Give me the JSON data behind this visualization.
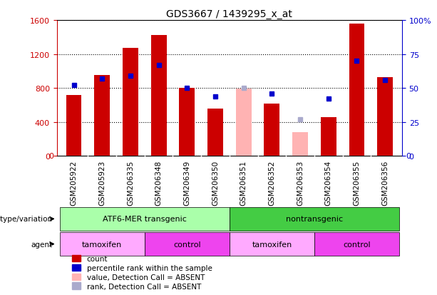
{
  "title": "GDS3667 / 1439295_x_at",
  "samples": [
    "GSM205922",
    "GSM205923",
    "GSM206335",
    "GSM206348",
    "GSM206349",
    "GSM206350",
    "GSM206351",
    "GSM206352",
    "GSM206353",
    "GSM206354",
    "GSM206355",
    "GSM206356"
  ],
  "count_values": [
    720,
    950,
    1270,
    1420,
    800,
    560,
    null,
    620,
    null,
    460,
    1560,
    930
  ],
  "count_absent": [
    null,
    null,
    null,
    null,
    null,
    null,
    790,
    null,
    280,
    null,
    null,
    null
  ],
  "rank_values": [
    52,
    57,
    59,
    67,
    50,
    44,
    null,
    46,
    null,
    42,
    70,
    56
  ],
  "rank_absent": [
    null,
    null,
    null,
    null,
    null,
    null,
    50,
    null,
    27,
    null,
    null,
    null
  ],
  "bar_color": "#cc0000",
  "bar_absent_color": "#ffb3b3",
  "rank_color": "#0000cc",
  "rank_absent_color": "#aaaacc",
  "left_ylim": [
    0,
    1600
  ],
  "right_ylim": [
    0,
    100
  ],
  "left_yticks": [
    0,
    400,
    800,
    1200,
    1600
  ],
  "right_yticks": [
    0,
    25,
    50,
    75,
    100
  ],
  "right_yticklabels": [
    "0",
    "25",
    "50",
    "75",
    "100%"
  ],
  "genotype_groups": [
    {
      "label": "ATF6-MER transgenic",
      "start": 0,
      "end": 6,
      "color": "#aaffaa"
    },
    {
      "label": "nontransgenic",
      "start": 6,
      "end": 12,
      "color": "#44cc44"
    }
  ],
  "agent_groups": [
    {
      "label": "tamoxifen",
      "start": 0,
      "end": 3,
      "color": "#ffaaff"
    },
    {
      "label": "control",
      "start": 3,
      "end": 6,
      "color": "#ee44ee"
    },
    {
      "label": "tamoxifen",
      "start": 6,
      "end": 9,
      "color": "#ffaaff"
    },
    {
      "label": "control",
      "start": 9,
      "end": 12,
      "color": "#ee44ee"
    }
  ],
  "legend_items": [
    {
      "label": "count",
      "color": "#cc0000"
    },
    {
      "label": "percentile rank within the sample",
      "color": "#0000cc"
    },
    {
      "label": "value, Detection Call = ABSENT",
      "color": "#ffb3b3"
    },
    {
      "label": "rank, Detection Call = ABSENT",
      "color": "#aaaacc"
    }
  ],
  "bar_width": 0.55,
  "rank_marker_size": 5,
  "bg_color": "#ffffff",
  "axis_label_color_left": "#cc0000",
  "axis_label_color_right": "#0000cc",
  "xtick_bg_color": "#cccccc",
  "label_fontsize": 8,
  "tick_fontsize": 7.5
}
